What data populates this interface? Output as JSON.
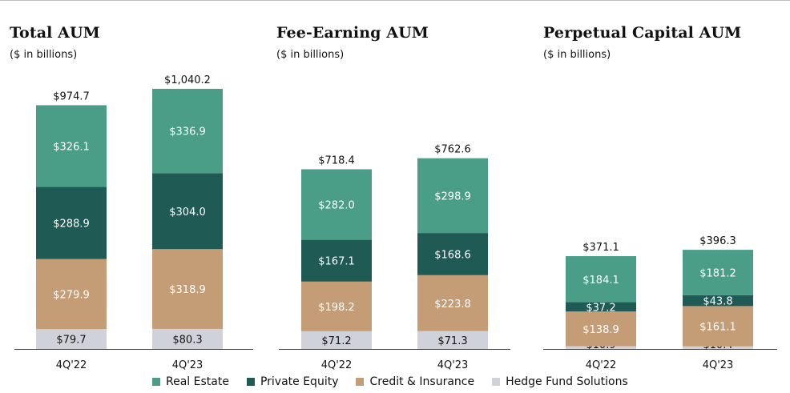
{
  "colors": {
    "real_estate": "#4a9e87",
    "private_equity": "#1f5a55",
    "credit_insurance": "#c49d77",
    "hedge_fund": "#cfd3d9"
  },
  "legend": [
    {
      "label": "Real Estate",
      "color": "#4a9e87"
    },
    {
      "label": "Private Equity",
      "color": "#1f5a55"
    },
    {
      "label": "Credit & Insurance",
      "color": "#c49d77"
    },
    {
      "label": "Hedge Fund Solutions",
      "color": "#cfd3d9"
    }
  ],
  "chart_data": [
    {
      "type": "bar",
      "stacked": true,
      "title": "Total AUM",
      "subtitle": "($ in billions)",
      "categories": [
        "4Q'22",
        "4Q'23"
      ],
      "totals": [
        974.7,
        1040.2
      ],
      "total_labels": [
        "$974.7",
        "$1,040.2"
      ],
      "series": [
        {
          "name": "Hedge Fund Solutions",
          "values": [
            79.7,
            80.3
          ],
          "labels": [
            "$79.7",
            "$80.3"
          ]
        },
        {
          "name": "Credit & Insurance",
          "values": [
            279.9,
            318.9
          ],
          "labels": [
            "$279.9",
            "$318.9"
          ]
        },
        {
          "name": "Private Equity",
          "values": [
            288.9,
            304.0
          ],
          "labels": [
            "$288.9",
            "$304.0"
          ]
        },
        {
          "name": "Real Estate",
          "values": [
            326.1,
            336.9
          ],
          "labels": [
            "$326.1",
            "$336.9"
          ]
        }
      ]
    },
    {
      "type": "bar",
      "stacked": true,
      "title": "Fee-Earning AUM",
      "subtitle": "($ in billions)",
      "categories": [
        "4Q'22",
        "4Q'23"
      ],
      "totals": [
        718.4,
        762.6
      ],
      "total_labels": [
        "$718.4",
        "$762.6"
      ],
      "series": [
        {
          "name": "Hedge Fund Solutions",
          "values": [
            71.2,
            71.3
          ],
          "labels": [
            "$71.2",
            "$71.3"
          ]
        },
        {
          "name": "Credit & Insurance",
          "values": [
            198.2,
            223.8
          ],
          "labels": [
            "$198.2",
            "$223.8"
          ]
        },
        {
          "name": "Private Equity",
          "values": [
            167.1,
            168.6
          ],
          "labels": [
            "$167.1",
            "$168.6"
          ]
        },
        {
          "name": "Real Estate",
          "values": [
            282.0,
            298.9
          ],
          "labels": [
            "$282.0",
            "$298.9"
          ]
        }
      ]
    },
    {
      "type": "bar",
      "stacked": true,
      "title": "Perpetual Capital AUM",
      "subtitle": "($ in billions)",
      "categories": [
        "4Q'22",
        "4Q'23"
      ],
      "totals": [
        371.1,
        396.3
      ],
      "total_labels": [
        "$371.1",
        "$396.3"
      ],
      "series": [
        {
          "name": "Hedge Fund Solutions",
          "values": [
            10.9,
            10.4
          ],
          "labels": [
            "$10.9",
            "$10.4"
          ]
        },
        {
          "name": "Credit & Insurance",
          "values": [
            138.9,
            161.1
          ],
          "labels": [
            "$138.9",
            "$161.1"
          ]
        },
        {
          "name": "Private Equity",
          "values": [
            37.2,
            43.8
          ],
          "labels": [
            "$37.2",
            "$43.8"
          ]
        },
        {
          "name": "Real Estate",
          "values": [
            184.1,
            181.2
          ],
          "labels": [
            "$184.1",
            "$181.2"
          ]
        }
      ]
    }
  ]
}
